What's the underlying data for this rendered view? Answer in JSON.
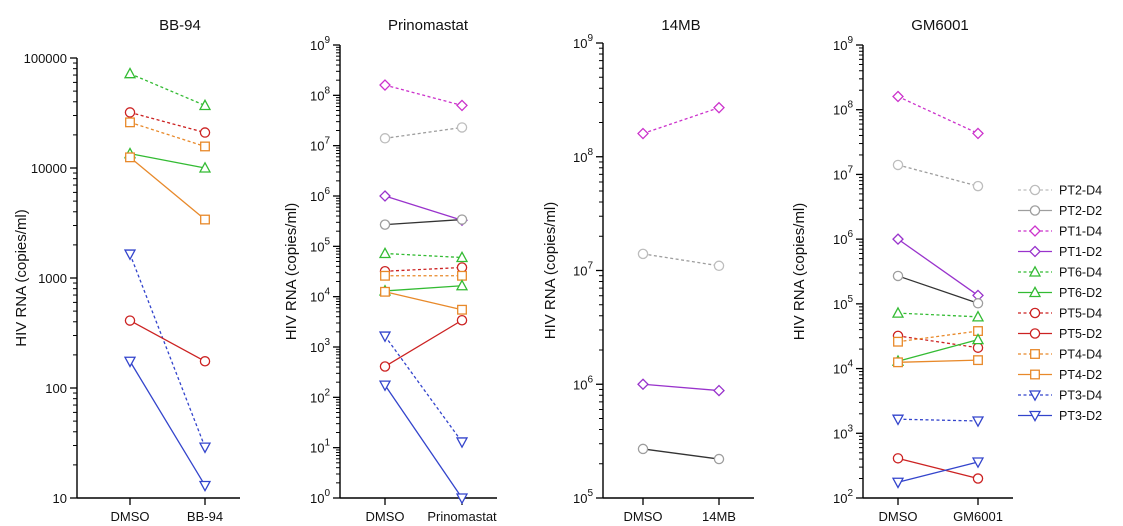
{
  "chart_data": [
    {
      "type": "line",
      "title": "BB-94",
      "ylabel": "HIV RNA (copies/ml)",
      "yscale": "log",
      "ylim": [
        10,
        100000
      ],
      "yticks": [
        {
          "v": 10,
          "label": "10"
        },
        {
          "v": 100,
          "label": "100"
        },
        {
          "v": 1000,
          "label": "1000"
        },
        {
          "v": 10000,
          "label": "10000"
        },
        {
          "v": 100000,
          "label": "100000"
        }
      ],
      "categories": [
        "DMSO",
        "BB-94"
      ],
      "series": [
        {
          "name": "PT6-D4",
          "values": [
            72000,
            37000
          ]
        },
        {
          "name": "PT5-D4",
          "values": [
            32000,
            21000
          ]
        },
        {
          "name": "PT4-D4",
          "values": [
            26000,
            15700
          ]
        },
        {
          "name": "PT6-D2",
          "values": [
            13500,
            10000
          ]
        },
        {
          "name": "PT4-D2",
          "values": [
            12500,
            3400
          ]
        },
        {
          "name": "PT3-D4",
          "values": [
            1650,
            29
          ]
        },
        {
          "name": "PT5-D2",
          "values": [
            410,
            175
          ]
        },
        {
          "name": "PT3-D2",
          "values": [
            175,
            13
          ]
        }
      ]
    },
    {
      "type": "line",
      "title": "Prinomastat",
      "ylabel": "HIV RNA (copies/ml)",
      "yscale": "log",
      "ylim": [
        1,
        1000000000
      ],
      "yticks": [
        {
          "v": 1,
          "base": "10",
          "exp": "0"
        },
        {
          "v": 10,
          "base": "10",
          "exp": "1"
        },
        {
          "v": 100,
          "base": "10",
          "exp": "2"
        },
        {
          "v": 1000,
          "base": "10",
          "exp": "3"
        },
        {
          "v": 10000,
          "base": "10",
          "exp": "4"
        },
        {
          "v": 100000,
          "base": "10",
          "exp": "5"
        },
        {
          "v": 1000000,
          "base": "10",
          "exp": "6"
        },
        {
          "v": 10000000,
          "base": "10",
          "exp": "7"
        },
        {
          "v": 100000000,
          "base": "10",
          "exp": "8"
        },
        {
          "v": 1000000000,
          "base": "10",
          "exp": "9"
        }
      ],
      "categories": [
        "DMSO",
        "Prinomastat"
      ],
      "series": [
        {
          "name": "PT1-D4",
          "values": [
            160000000,
            63000000
          ]
        },
        {
          "name": "PT2-D4",
          "values": [
            14000000,
            23000000
          ]
        },
        {
          "name": "PT1-D2",
          "values": [
            1000000,
            330000
          ]
        },
        {
          "name": "PT2-D2",
          "values": [
            270000,
            340000
          ]
        },
        {
          "name": "PT6-D4",
          "values": [
            72000,
            60000
          ]
        },
        {
          "name": "PT5-D4",
          "values": [
            32000,
            38000
          ]
        },
        {
          "name": "PT4-D4",
          "values": [
            26000,
            26000
          ]
        },
        {
          "name": "PT6-D2",
          "values": [
            13000,
            16500
          ]
        },
        {
          "name": "PT4-D2",
          "values": [
            12500,
            5500
          ]
        },
        {
          "name": "PT3-D4",
          "values": [
            1650,
            13
          ]
        },
        {
          "name": "PT5-D2",
          "values": [
            410,
            3400
          ]
        },
        {
          "name": "PT3-D2",
          "values": [
            175,
            1
          ]
        }
      ]
    },
    {
      "type": "line",
      "title": "14MB",
      "ylabel": "HIV RNA (copies/ml)",
      "yscale": "log",
      "ylim": [
        100000,
        1000000000
      ],
      "yticks": [
        {
          "v": 100000,
          "base": "10",
          "exp": "5"
        },
        {
          "v": 1000000,
          "base": "10",
          "exp": "6"
        },
        {
          "v": 10000000,
          "base": "10",
          "exp": "7"
        },
        {
          "v": 100000000,
          "base": "10",
          "exp": "8"
        },
        {
          "v": 1000000000,
          "base": "10",
          "exp": "9"
        }
      ],
      "categories": [
        "DMSO",
        "14MB"
      ],
      "series": [
        {
          "name": "PT1-D4",
          "values": [
            160000000,
            270000000
          ]
        },
        {
          "name": "PT2-D4",
          "values": [
            14000000,
            11000000
          ]
        },
        {
          "name": "PT1-D2",
          "values": [
            1000000,
            880000
          ]
        },
        {
          "name": "PT2-D2",
          "values": [
            270000,
            220000
          ]
        }
      ]
    },
    {
      "type": "line",
      "title": "GM6001",
      "ylabel": "HIV RNA (copies/ml)",
      "yscale": "log",
      "ylim": [
        100,
        1000000000
      ],
      "yticks": [
        {
          "v": 100,
          "base": "10",
          "exp": "2"
        },
        {
          "v": 1000,
          "base": "10",
          "exp": "3"
        },
        {
          "v": 10000,
          "base": "10",
          "exp": "4"
        },
        {
          "v": 100000,
          "base": "10",
          "exp": "5"
        },
        {
          "v": 1000000,
          "base": "10",
          "exp": "6"
        },
        {
          "v": 10000000,
          "base": "10",
          "exp": "7"
        },
        {
          "v": 100000000,
          "base": "10",
          "exp": "8"
        },
        {
          "v": 1000000000,
          "base": "10",
          "exp": "9"
        }
      ],
      "categories": [
        "DMSO",
        "GM6001"
      ],
      "series": [
        {
          "name": "PT1-D4",
          "values": [
            160000000,
            43000000
          ]
        },
        {
          "name": "PT2-D4",
          "values": [
            14000000,
            6600000
          ]
        },
        {
          "name": "PT1-D2",
          "values": [
            1000000,
            135000
          ]
        },
        {
          "name": "PT2-D2",
          "values": [
            270000,
            102000
          ]
        },
        {
          "name": "PT6-D4",
          "values": [
            72000,
            63000
          ]
        },
        {
          "name": "PT5-D4",
          "values": [
            32000,
            21000
          ]
        },
        {
          "name": "PT4-D4",
          "values": [
            26000,
            38000
          ]
        },
        {
          "name": "PT6-D2",
          "values": [
            13000,
            28000
          ]
        },
        {
          "name": "PT4-D2",
          "values": [
            12500,
            13500
          ]
        },
        {
          "name": "PT3-D4",
          "values": [
            1650,
            1550
          ]
        },
        {
          "name": "PT5-D2",
          "values": [
            410,
            200
          ]
        },
        {
          "name": "PT3-D2",
          "values": [
            175,
            360
          ]
        }
      ]
    }
  ],
  "legend": {
    "placement": "right",
    "entries": [
      {
        "name": "PT2-D4",
        "color": "#bdbdbd",
        "marker": "circle",
        "dash": true
      },
      {
        "name": "PT2-D2",
        "color": "#9e9e9e",
        "marker": "circle",
        "dash": false
      },
      {
        "name": "PT1-D4",
        "color": "#cc33cc",
        "marker": "diamond",
        "dash": true
      },
      {
        "name": "PT1-D2",
        "color": "#9933cc",
        "marker": "diamond",
        "dash": false
      },
      {
        "name": "PT6-D4",
        "color": "#33bb33",
        "marker": "triangle-up",
        "dash": true
      },
      {
        "name": "PT6-D2",
        "color": "#33bb33",
        "marker": "triangle-up",
        "dash": false
      },
      {
        "name": "PT5-D4",
        "color": "#cc2222",
        "marker": "circle",
        "dash": true
      },
      {
        "name": "PT5-D2",
        "color": "#cc2222",
        "marker": "circle",
        "dash": false
      },
      {
        "name": "PT4-D4",
        "color": "#e8892a",
        "marker": "square",
        "dash": true
      },
      {
        "name": "PT4-D2",
        "color": "#e8892a",
        "marker": "square",
        "dash": false
      },
      {
        "name": "PT3-D4",
        "color": "#3344cc",
        "marker": "triangle-down",
        "dash": true
      },
      {
        "name": "PT3-D2",
        "color": "#3344cc",
        "marker": "triangle-down",
        "dash": false
      }
    ]
  },
  "line_colors": {
    "PT2-D4": "#9e9e9e",
    "PT2-D2": "#333333"
  }
}
